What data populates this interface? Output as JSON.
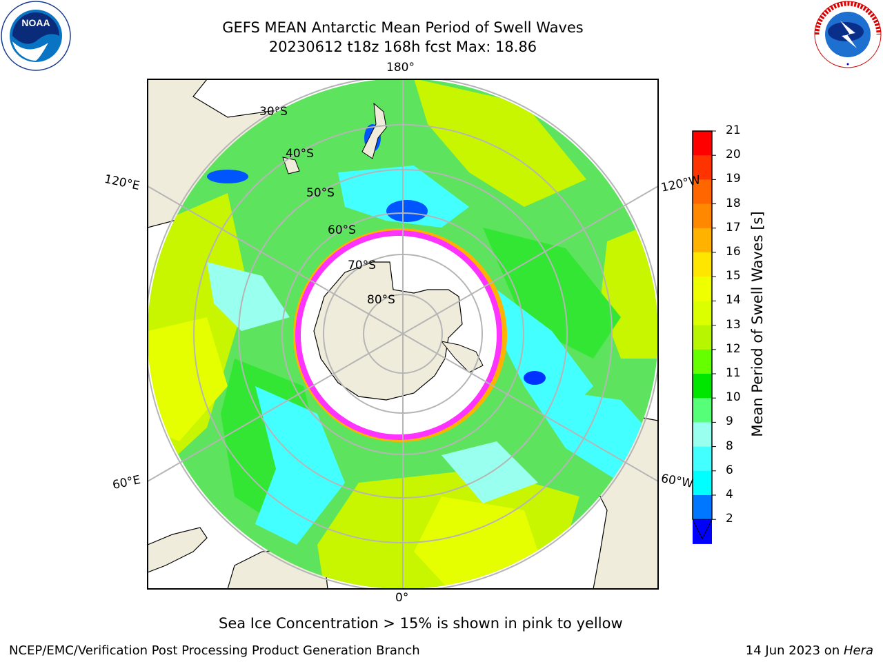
{
  "header": {
    "title_line1": "GEFS MEAN Antarctic Mean Period of Swell Waves",
    "title_line2": "20230612 t18z 168h fcst   Max: 18.86"
  },
  "logos": {
    "left": "noaa-logo",
    "right": "nws-logo"
  },
  "map": {
    "projection": "south-polar-stereographic",
    "meridian_labels": [
      "180°",
      "120°E",
      "120°W",
      "60°E",
      "60°W",
      "0°"
    ],
    "parallel_labels": [
      "30°S",
      "40°S",
      "50°S",
      "60°S",
      "70°S",
      "80°S"
    ],
    "colors": {
      "land": "#efecdc",
      "ice_free_ocean_dominant": "#5ee35e",
      "sea_ice_edge": "#ff33ff"
    }
  },
  "colorbar": {
    "label": "Mean Period of Swell Waves [s]",
    "ticks": [
      "21",
      "20",
      "19",
      "18",
      "17",
      "16",
      "15",
      "14",
      "13",
      "12",
      "11",
      "10",
      "9",
      "8",
      "6",
      "4",
      "2"
    ],
    "colors": [
      "#ff0000",
      "#ff3300",
      "#ff6600",
      "#ff8800",
      "#ffb300",
      "#ffe600",
      "#f0ff00",
      "#dcff00",
      "#b8f500",
      "#66ff00",
      "#00e600",
      "#55ff77",
      "#99ffee",
      "#44ffff",
      "#00ffff",
      "#0077ff",
      "#0000ff"
    ]
  },
  "caption": "Sea Ice Concentration > 15% is shown in pink to yellow",
  "footer": {
    "left": "NCEP/EMC/Verification Post Processing Product Generation Branch",
    "right_date": "14 Jun 2023 on ",
    "right_host": "Hera"
  }
}
